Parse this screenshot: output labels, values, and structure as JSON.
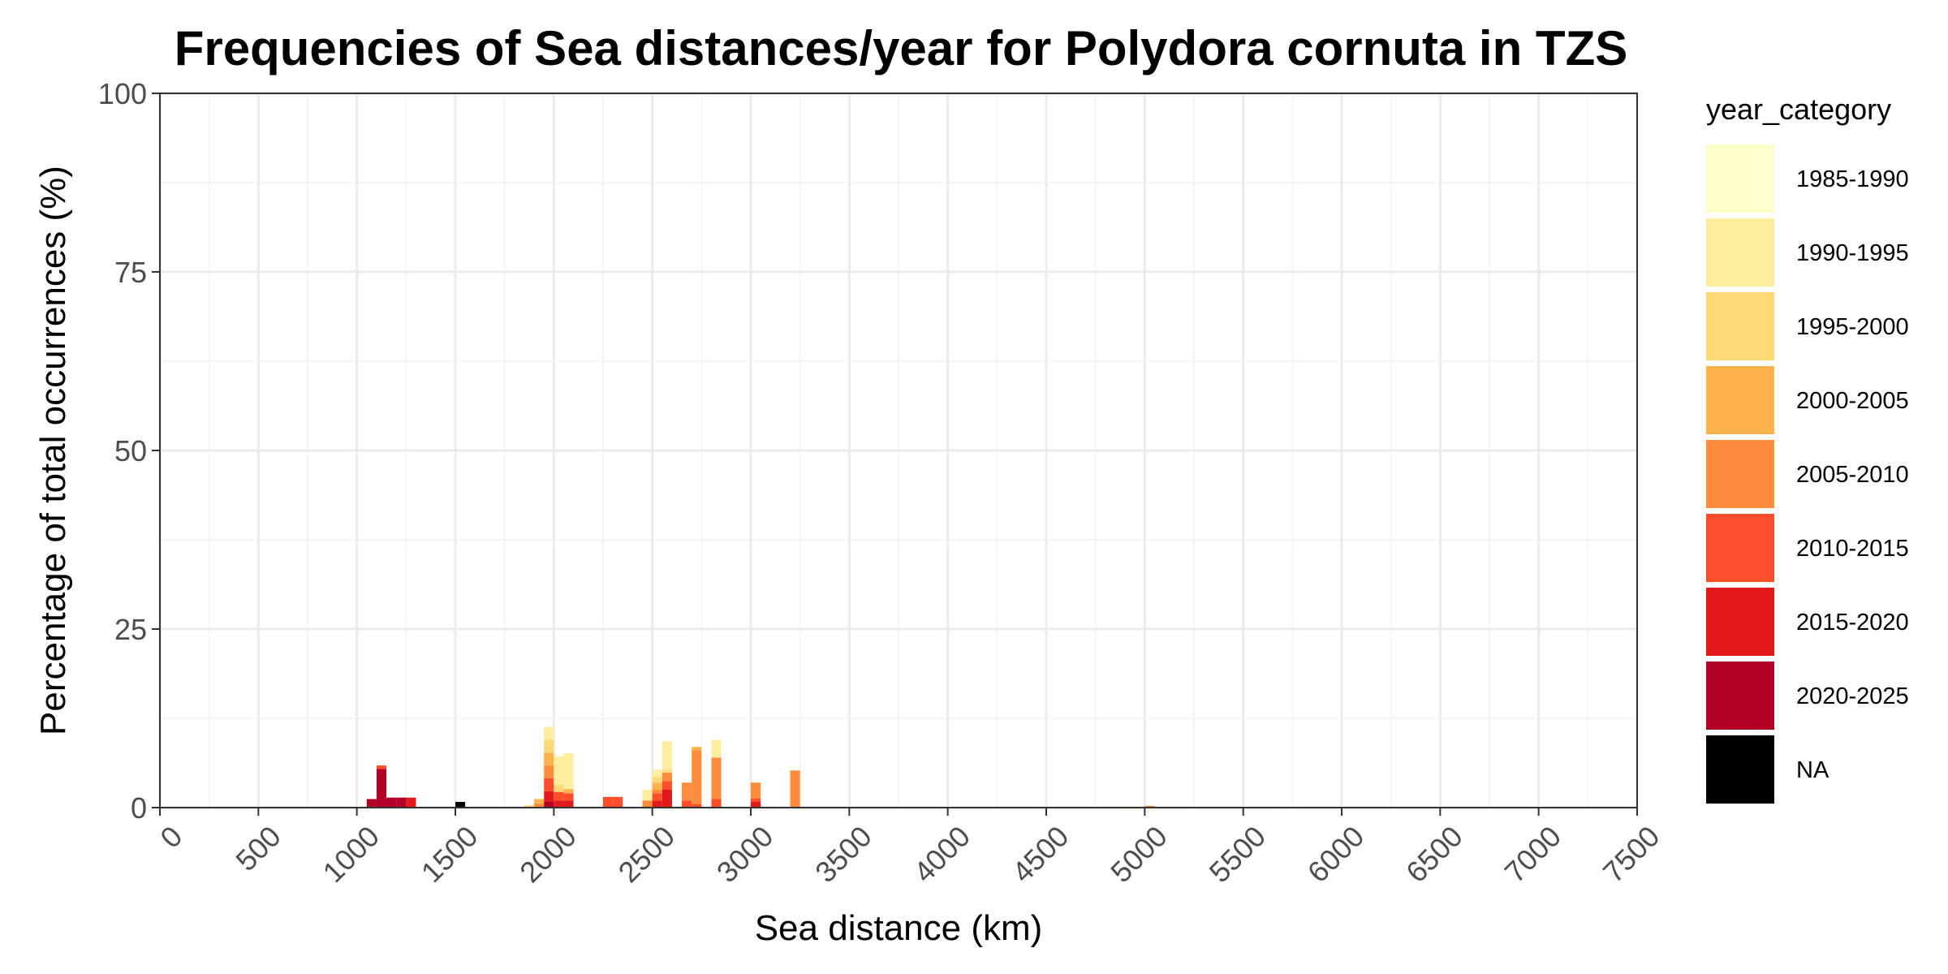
{
  "chart_data": {
    "type": "bar",
    "stacked": true,
    "title": "Frequencies of Sea distances/year for Polydora cornuta in TZS",
    "xlabel": "Sea distance (km)",
    "ylabel": "Percentage of total occurrences (%)",
    "xlim": [
      0,
      7500
    ],
    "ylim": [
      0,
      100
    ],
    "x_ticks": [
      "0",
      "500",
      "1000",
      "1500",
      "2000",
      "2500",
      "3000",
      "3500",
      "4000",
      "4500",
      "5000",
      "5500",
      "6000",
      "6500",
      "7000",
      "7500"
    ],
    "y_ticks": [
      "0",
      "25",
      "50",
      "75",
      "100"
    ],
    "bin_width_km": 50,
    "grid": true,
    "legend": {
      "title": "year_category",
      "position": "right",
      "entries": [
        {
          "label": "1985-1990",
          "color": "#FFFFCC"
        },
        {
          "label": "1990-1995",
          "color": "#FFEDA0"
        },
        {
          "label": "1995-2000",
          "color": "#FED976"
        },
        {
          "label": "2000-2005",
          "color": "#FEB24C"
        },
        {
          "label": "2005-2010",
          "color": "#FD8D3C"
        },
        {
          "label": "2010-2015",
          "color": "#FC4E2A"
        },
        {
          "label": "2015-2020",
          "color": "#E31A1C"
        },
        {
          "label": "2020-2025",
          "color": "#B10026"
        },
        {
          "label": "NA",
          "color": "#000000"
        }
      ]
    },
    "bins": [
      {
        "x": 1075,
        "segments": [
          {
            "category": "2020-2025",
            "value": 1.2
          }
        ]
      },
      {
        "x": 1125,
        "segments": [
          {
            "category": "2010-2015",
            "value": 0.5
          },
          {
            "category": "2020-2025",
            "value": 5.4
          }
        ]
      },
      {
        "x": 1175,
        "segments": [
          {
            "category": "2020-2025",
            "value": 1.4
          }
        ]
      },
      {
        "x": 1225,
        "segments": [
          {
            "category": "2020-2025",
            "value": 1.4
          }
        ]
      },
      {
        "x": 1275,
        "segments": [
          {
            "category": "2015-2020",
            "value": 1.4
          }
        ]
      },
      {
        "x": 1525,
        "segments": [
          {
            "category": "NA",
            "value": 0.8
          }
        ]
      },
      {
        "x": 1875,
        "segments": [
          {
            "category": "1995-2000",
            "value": 0.3
          }
        ]
      },
      {
        "x": 1925,
        "segments": [
          {
            "category": "2000-2005",
            "value": 0.6
          },
          {
            "category": "2005-2010",
            "value": 0.6
          }
        ]
      },
      {
        "x": 1975,
        "segments": [
          {
            "category": "1990-1995",
            "value": 1.8
          },
          {
            "category": "1995-2000",
            "value": 1.8
          },
          {
            "category": "2000-2005",
            "value": 1.8
          },
          {
            "category": "2005-2010",
            "value": 1.8
          },
          {
            "category": "2010-2015",
            "value": 1.8
          },
          {
            "category": "2015-2020",
            "value": 1.5
          },
          {
            "category": "2020-2025",
            "value": 0.8
          }
        ]
      },
      {
        "x": 2025,
        "segments": [
          {
            "category": "1990-1995",
            "value": 4.0
          },
          {
            "category": "1995-2000",
            "value": 1.0
          },
          {
            "category": "2010-2015",
            "value": 1.2
          },
          {
            "category": "2015-2020",
            "value": 1.0
          }
        ]
      },
      {
        "x": 2075,
        "segments": [
          {
            "category": "1990-1995",
            "value": 5.0
          },
          {
            "category": "2000-2005",
            "value": 0.6
          },
          {
            "category": "2010-2015",
            "value": 1.0
          },
          {
            "category": "2015-2020",
            "value": 1.0
          }
        ]
      },
      {
        "x": 2275,
        "segments": [
          {
            "category": "2010-2015",
            "value": 1.5
          }
        ]
      },
      {
        "x": 2325,
        "segments": [
          {
            "category": "2010-2015",
            "value": 1.5
          }
        ]
      },
      {
        "x": 2475,
        "segments": [
          {
            "category": "1990-1995",
            "value": 1.5
          },
          {
            "category": "2005-2010",
            "value": 1.0
          }
        ]
      },
      {
        "x": 2525,
        "segments": [
          {
            "category": "1990-1995",
            "value": 1.0
          },
          {
            "category": "1995-2000",
            "value": 0.8
          },
          {
            "category": "2000-2005",
            "value": 1.0
          },
          {
            "category": "2005-2010",
            "value": 0.5
          },
          {
            "category": "2010-2015",
            "value": 1.0
          },
          {
            "category": "2015-2020",
            "value": 1.0
          }
        ]
      },
      {
        "x": 2575,
        "segments": [
          {
            "category": "1990-1995",
            "value": 4.0
          },
          {
            "category": "1995-2000",
            "value": 0.4
          },
          {
            "category": "2005-2010",
            "value": 1.2
          },
          {
            "category": "2010-2015",
            "value": 1.2
          },
          {
            "category": "2015-2020",
            "value": 2.5
          }
        ]
      },
      {
        "x": 2675,
        "segments": [
          {
            "category": "2005-2010",
            "value": 2.5
          },
          {
            "category": "2010-2015",
            "value": 1.0
          }
        ]
      },
      {
        "x": 2725,
        "segments": [
          {
            "category": "2000-2005",
            "value": 0.5
          },
          {
            "category": "2005-2010",
            "value": 7.5
          },
          {
            "category": "2010-2015",
            "value": 0.5
          }
        ]
      },
      {
        "x": 2825,
        "segments": [
          {
            "category": "1990-1995",
            "value": 2.5
          },
          {
            "category": "2005-2010",
            "value": 5.8
          },
          {
            "category": "2010-2015",
            "value": 1.2
          }
        ]
      },
      {
        "x": 3025,
        "segments": [
          {
            "category": "2005-2010",
            "value": 2.2
          },
          {
            "category": "2010-2015",
            "value": 0.5
          },
          {
            "category": "2015-2020",
            "value": 0.8
          }
        ]
      },
      {
        "x": 3225,
        "segments": [
          {
            "category": "2005-2010",
            "value": 5.2
          }
        ]
      },
      {
        "x": 4925,
        "segments": [
          {
            "category": "1990-1995",
            "value": 0.15
          }
        ]
      },
      {
        "x": 5025,
        "segments": [
          {
            "category": "2005-2010",
            "value": 0.25
          }
        ]
      },
      {
        "x": 5625,
        "segments": [
          {
            "category": "2010-2015",
            "value": 0.12
          }
        ]
      }
    ]
  }
}
